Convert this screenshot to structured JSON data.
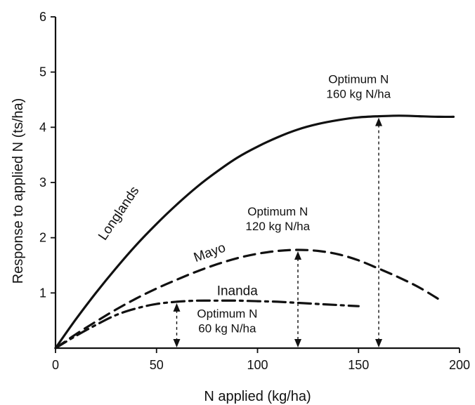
{
  "chart_data": {
    "type": "line",
    "xlabel": "N applied (kg/ha)",
    "ylabel": "Response to applied N (ts/ha)",
    "xlim": [
      0,
      200
    ],
    "ylim": [
      0,
      6
    ],
    "x_ticks": [
      0,
      50,
      100,
      150,
      200
    ],
    "y_ticks": [
      1,
      2,
      3,
      4,
      5,
      6
    ],
    "x_tick_labels": [
      "0",
      "50",
      "100",
      "150",
      "200"
    ],
    "y_tick_labels": [
      "1",
      "2",
      "3",
      "4",
      "5",
      "6"
    ],
    "grid": false,
    "series": [
      {
        "name": "Longlands",
        "style": "solid",
        "label_pos": [
          33,
          2.4
        ],
        "label_rotate": -56,
        "x": [
          0,
          10,
          20,
          30,
          40,
          50,
          60,
          70,
          80,
          90,
          100,
          110,
          120,
          130,
          140,
          150,
          160,
          170,
          180,
          190,
          197
        ],
        "y": [
          0,
          0.52,
          1.0,
          1.45,
          1.87,
          2.25,
          2.6,
          2.92,
          3.2,
          3.45,
          3.65,
          3.82,
          3.96,
          4.06,
          4.13,
          4.18,
          4.2,
          4.21,
          4.2,
          4.19,
          4.19
        ]
      },
      {
        "name": "Mayo",
        "style": "dashed",
        "label_pos": [
          77,
          1.66
        ],
        "label_rotate": -20,
        "x": [
          0,
          10,
          20,
          30,
          40,
          50,
          60,
          70,
          80,
          90,
          100,
          110,
          120,
          130,
          140,
          150,
          160,
          170,
          180,
          190
        ],
        "y": [
          0,
          0.25,
          0.48,
          0.7,
          0.9,
          1.08,
          1.24,
          1.39,
          1.52,
          1.63,
          1.71,
          1.76,
          1.78,
          1.76,
          1.7,
          1.59,
          1.44,
          1.28,
          1.1,
          0.88
        ]
      },
      {
        "name": "Inanda",
        "style": "dashdot",
        "label_pos": [
          90,
          0.96
        ],
        "label_rotate": 0,
        "x": [
          0,
          10,
          20,
          30,
          40,
          50,
          60,
          70,
          80,
          90,
          100,
          110,
          120,
          130,
          140,
          150
        ],
        "y": [
          0,
          0.22,
          0.42,
          0.6,
          0.72,
          0.8,
          0.84,
          0.86,
          0.86,
          0.86,
          0.85,
          0.84,
          0.82,
          0.8,
          0.78,
          0.76
        ]
      }
    ],
    "annotations": [
      {
        "x": 160,
        "y_top": 4.2,
        "line1": "Optimum N",
        "line2": "160 kg N/ha",
        "text_x": 150,
        "text_y": 4.8
      },
      {
        "x": 120,
        "y_top": 1.78,
        "line1": "Optimum N",
        "line2": "120 kg N/ha",
        "text_x": 110,
        "text_y": 2.4
      },
      {
        "x": 60,
        "y_top": 0.84,
        "line1": "Optimum N",
        "line2": "60 kg N/ha",
        "text_x": 85,
        "text_y": 0.55
      }
    ]
  }
}
